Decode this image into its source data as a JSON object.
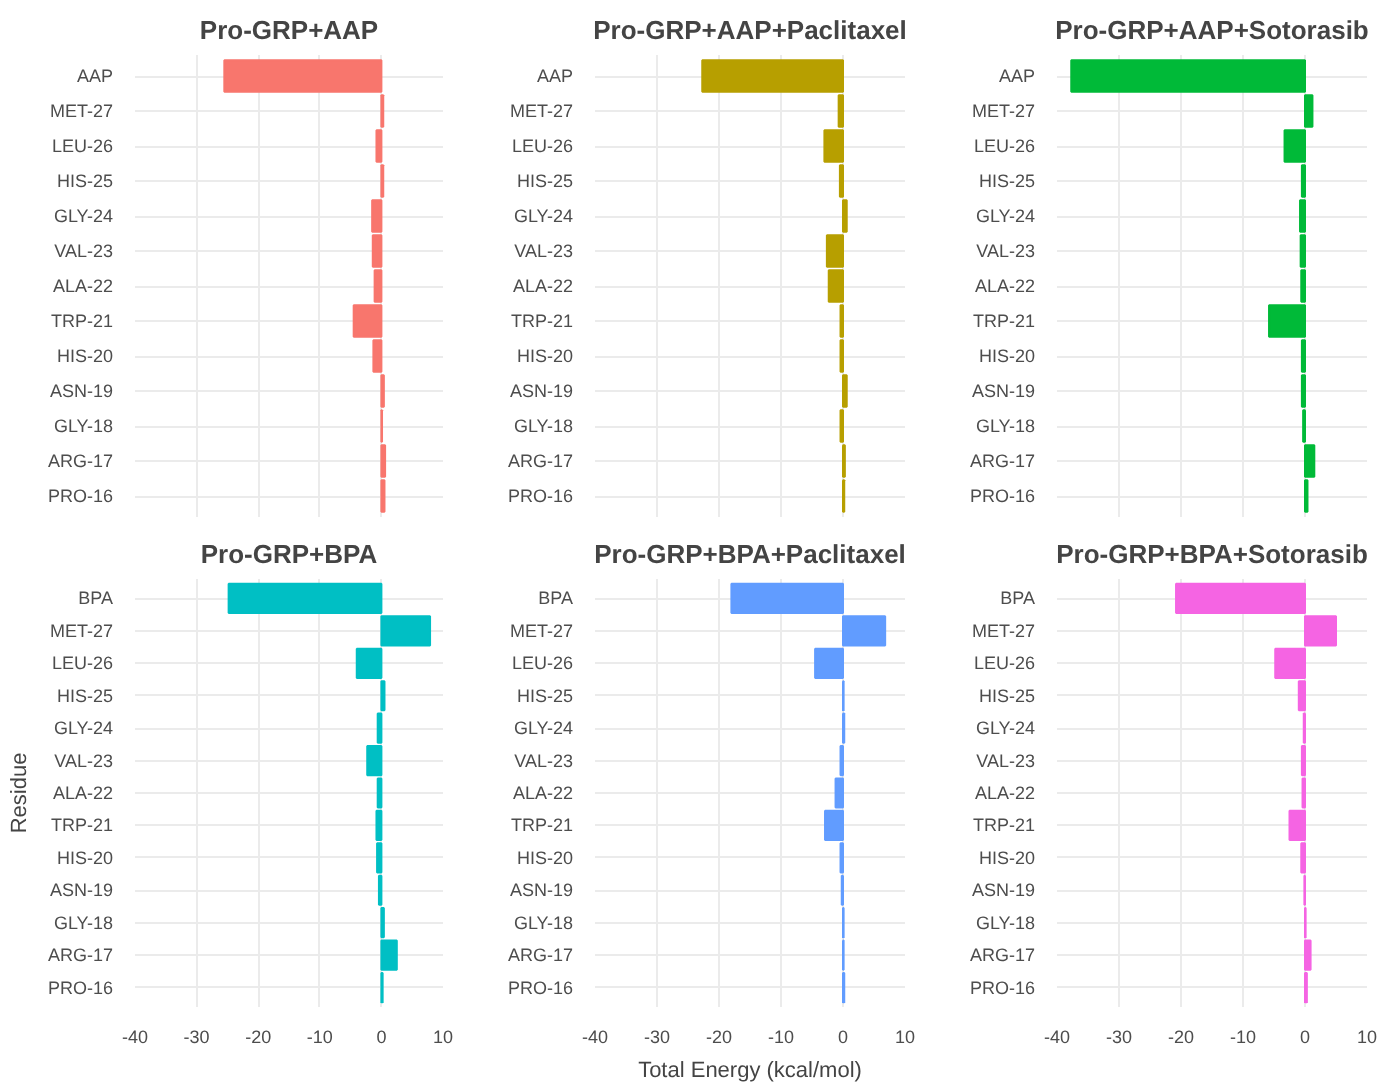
{
  "chart_data": [
    {
      "type": "bar",
      "orientation": "horizontal",
      "title": "Pro-GRP+AAP",
      "categories": [
        "AAP",
        "MET-27",
        "LEU-26",
        "HIS-25",
        "GLY-24",
        "VAL-23",
        "ALA-22",
        "TRP-21",
        "HIS-20",
        "ASN-19",
        "GLY-18",
        "ARG-17",
        "PRO-16"
      ],
      "values": [
        -25.5,
        0.3,
        -0.8,
        0.3,
        -1.5,
        -1.4,
        -1.1,
        -4.5,
        -1.3,
        0.4,
        0.1,
        0.6,
        0.5
      ],
      "color": "#f8766d",
      "xlim": [
        -40,
        10
      ],
      "xticks": [
        -40,
        -30,
        -20,
        -10,
        0,
        10
      ],
      "grid": true,
      "tick_labels": "y"
    },
    {
      "type": "bar",
      "orientation": "horizontal",
      "title": "Pro-GRP+AAP+Paclitaxel",
      "categories": [
        "AAP",
        "MET-27",
        "LEU-26",
        "HIS-25",
        "GLY-24",
        "VAL-23",
        "ALA-22",
        "TRP-21",
        "HIS-20",
        "ASN-19",
        "GLY-18",
        "ARG-17",
        "PRO-16"
      ],
      "values": [
        -22.7,
        -0.7,
        -3.0,
        -0.5,
        0.6,
        -2.6,
        -2.3,
        -0.4,
        -0.4,
        0.6,
        -0.4,
        0.3,
        0.2
      ],
      "color": "#b79f00",
      "xlim": [
        -40,
        10
      ],
      "xticks": [
        -40,
        -30,
        -20,
        -10,
        0,
        10
      ],
      "grid": true,
      "tick_labels": "y"
    },
    {
      "type": "bar",
      "orientation": "horizontal",
      "title": "Pro-GRP+AAP+Sotorasib",
      "categories": [
        "AAP",
        "MET-27",
        "LEU-26",
        "HIS-25",
        "GLY-24",
        "VAL-23",
        "ALA-22",
        "TRP-21",
        "HIS-20",
        "ASN-19",
        "GLY-18",
        "ARG-17",
        "PRO-16"
      ],
      "values": [
        -37.7,
        1.2,
        -3.3,
        -0.5,
        -0.8,
        -0.7,
        -0.6,
        -5.8,
        -0.5,
        -0.5,
        -0.3,
        1.5,
        0.4
      ],
      "color": "#00ba38",
      "xlim": [
        -40,
        10
      ],
      "xticks": [
        -40,
        -30,
        -20,
        -10,
        0,
        10
      ],
      "grid": true,
      "tick_labels": "y"
    },
    {
      "type": "bar",
      "orientation": "horizontal",
      "title": "Pro-GRP+BPA",
      "ylabel": "Residue",
      "categories": [
        "BPA",
        "MET-27",
        "LEU-26",
        "HIS-25",
        "GLY-24",
        "VAL-23",
        "ALA-22",
        "TRP-21",
        "HIS-20",
        "ASN-19",
        "GLY-18",
        "ARG-17",
        "PRO-16"
      ],
      "values": [
        -24.8,
        7.9,
        -4.0,
        0.5,
        -0.6,
        -2.3,
        -0.6,
        -0.8,
        -0.7,
        -0.4,
        0.4,
        2.5,
        0.2
      ],
      "color": "#00bfc4",
      "xlim": [
        -40,
        10
      ],
      "xticks": [
        -40,
        -30,
        -20,
        -10,
        0,
        10
      ],
      "grid": true
    },
    {
      "type": "bar",
      "orientation": "horizontal",
      "title": "Pro-GRP+BPA+Paclitaxel",
      "xlabel": "Total Energy (kcal/mol)",
      "categories": [
        "BPA",
        "MET-27",
        "LEU-26",
        "HIS-25",
        "GLY-24",
        "VAL-23",
        "ALA-22",
        "TRP-21",
        "HIS-20",
        "ASN-19",
        "GLY-18",
        "ARG-17",
        "PRO-16"
      ],
      "values": [
        -18.0,
        6.8,
        -4.5,
        0.1,
        0.2,
        -0.4,
        -1.2,
        -2.9,
        -0.4,
        -0.2,
        0.1,
        0.1,
        0.2
      ],
      "color": "#619cff",
      "xlim": [
        -40,
        10
      ],
      "xticks": [
        -40,
        -30,
        -20,
        -10,
        0,
        10
      ],
      "grid": true
    },
    {
      "type": "bar",
      "orientation": "horizontal",
      "title": "Pro-GRP+BPA+Sotorasib",
      "categories": [
        "BPA",
        "MET-27",
        "LEU-26",
        "HIS-25",
        "GLY-24",
        "VAL-23",
        "ALA-22",
        "TRP-21",
        "HIS-20",
        "ASN-19",
        "GLY-18",
        "ARG-17",
        "PRO-16"
      ],
      "values": [
        -20.8,
        5.0,
        -4.8,
        -1.0,
        -0.2,
        -0.5,
        -0.4,
        -2.5,
        -0.6,
        -0.1,
        0.1,
        0.9,
        0.3
      ],
      "color": "#f564e3",
      "xlim": [
        -40,
        10
      ],
      "xticks": [
        -40,
        -30,
        -20,
        -10,
        0,
        10
      ],
      "grid": true
    }
  ]
}
